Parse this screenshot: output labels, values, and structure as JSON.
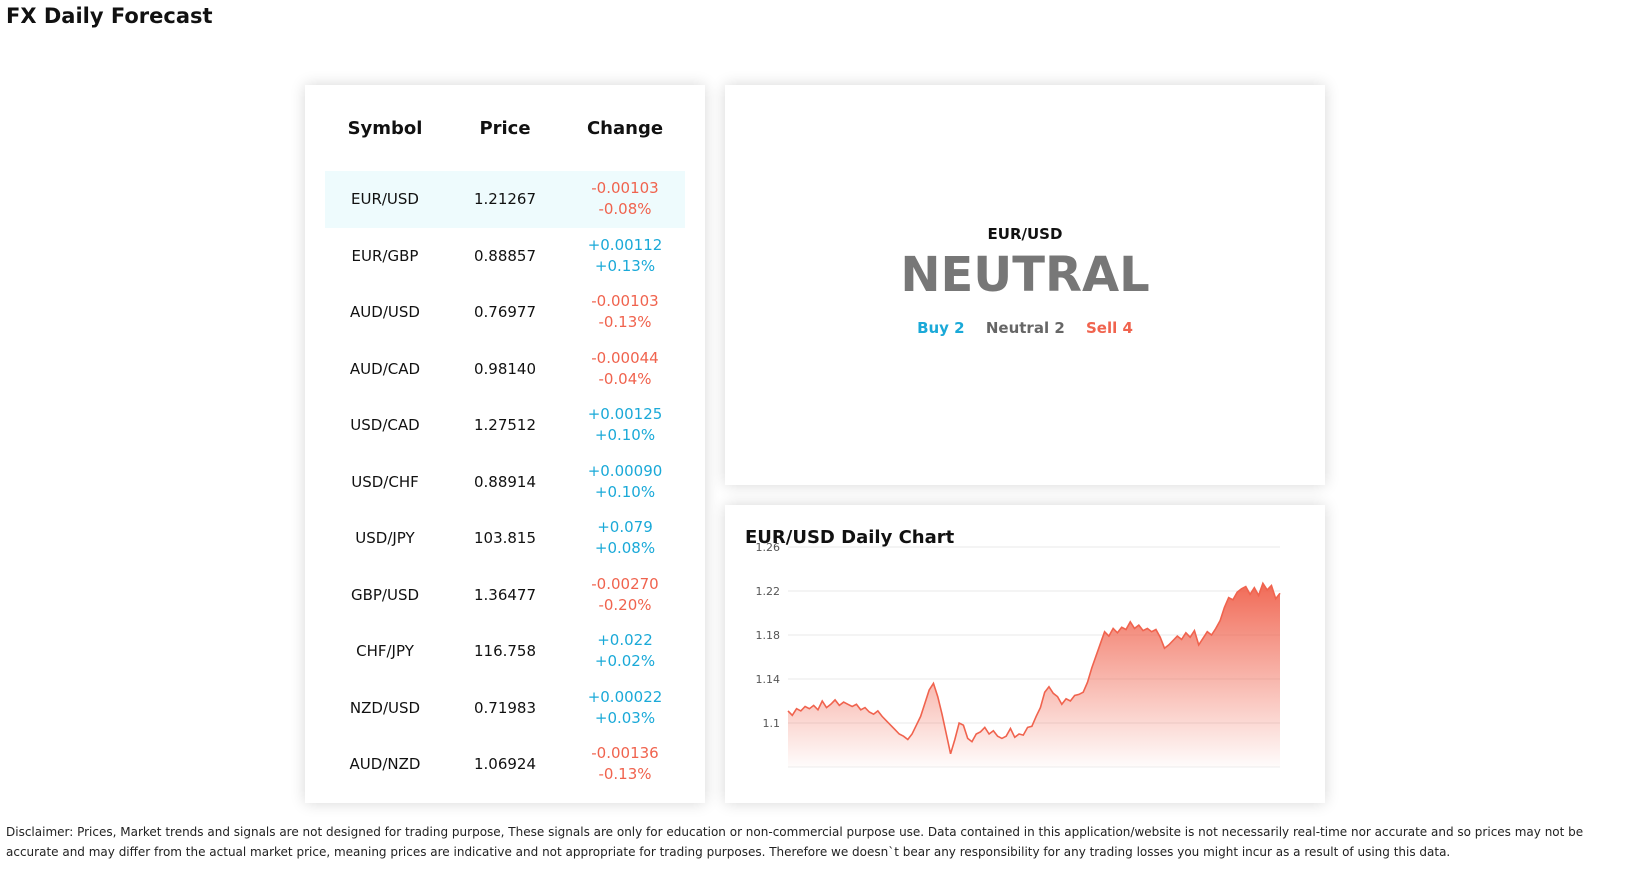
{
  "page": {
    "title": "FX Daily Forecast"
  },
  "table": {
    "headers": {
      "symbol": "Symbol",
      "price": "Price",
      "change": "Change"
    },
    "rows": [
      {
        "symbol": "EUR/USD",
        "price": "1.21267",
        "change": "-0.00103",
        "change_pct": "-0.08%",
        "direction": "down",
        "selected": true
      },
      {
        "symbol": "EUR/GBP",
        "price": "0.88857",
        "change": "+0.00112",
        "change_pct": "+0.13%",
        "direction": "up"
      },
      {
        "symbol": "AUD/USD",
        "price": "0.76977",
        "change": "-0.00103",
        "change_pct": "-0.13%",
        "direction": "down"
      },
      {
        "symbol": "AUD/CAD",
        "price": "0.98140",
        "change": "-0.00044",
        "change_pct": "-0.04%",
        "direction": "down"
      },
      {
        "symbol": "USD/CAD",
        "price": "1.27512",
        "change": "+0.00125",
        "change_pct": "+0.10%",
        "direction": "up"
      },
      {
        "symbol": "USD/CHF",
        "price": "0.88914",
        "change": "+0.00090",
        "change_pct": "+0.10%",
        "direction": "up"
      },
      {
        "symbol": "USD/JPY",
        "price": "103.815",
        "change": "+0.079",
        "change_pct": "+0.08%",
        "direction": "up"
      },
      {
        "symbol": "GBP/USD",
        "price": "1.36477",
        "change": "-0.00270",
        "change_pct": "-0.20%",
        "direction": "down"
      },
      {
        "symbol": "CHF/JPY",
        "price": "116.758",
        "change": "+0.022",
        "change_pct": "+0.02%",
        "direction": "up"
      },
      {
        "symbol": "NZD/USD",
        "price": "0.71983",
        "change": "+0.00022",
        "change_pct": "+0.03%",
        "direction": "up"
      },
      {
        "symbol": "AUD/NZD",
        "price": "1.06924",
        "change": "-0.00136",
        "change_pct": "-0.13%",
        "direction": "down"
      }
    ]
  },
  "signal": {
    "pair": "EUR/USD",
    "value": "NEUTRAL",
    "buy": "Buy 2",
    "neutral": "Neutral 2",
    "sell": "Sell 4"
  },
  "colors": {
    "up": "#1aa9d8",
    "down": "#f0634e",
    "neutral": "#777777",
    "selected_row": "#eefbfd"
  },
  "chart": {
    "title": "EUR/USD Daily Chart"
  },
  "chart_data": {
    "type": "area",
    "title": "EUR/USD Daily Chart",
    "xlabel": "",
    "ylabel": "",
    "ylim": [
      1.06,
      1.26
    ],
    "yticks": [
      "1.26",
      "1.22",
      "1.18",
      "1.14",
      "1.1"
    ],
    "grid": true,
    "series": [
      {
        "values": [
          1.111,
          1.107,
          1.113,
          1.111,
          1.115,
          1.113,
          1.116,
          1.112,
          1.12,
          1.114,
          1.117,
          1.121,
          1.116,
          1.119,
          1.117,
          1.115,
          1.117,
          1.112,
          1.114,
          1.11,
          1.108,
          1.111,
          1.106,
          1.102,
          1.098,
          1.094,
          1.09,
          1.088,
          1.085,
          1.09,
          1.098,
          1.106,
          1.118,
          1.13,
          1.136,
          1.124,
          1.108,
          1.09,
          1.072,
          1.085,
          1.1,
          1.098,
          1.086,
          1.083,
          1.09,
          1.092,
          1.096,
          1.09,
          1.093,
          1.088,
          1.086,
          1.088,
          1.095,
          1.087,
          1.09,
          1.089,
          1.096,
          1.097,
          1.106,
          1.114,
          1.128,
          1.133,
          1.127,
          1.124,
          1.117,
          1.122,
          1.12,
          1.125,
          1.126,
          1.128,
          1.137,
          1.15,
          1.161,
          1.172,
          1.183,
          1.179,
          1.186,
          1.182,
          1.187,
          1.185,
          1.192,
          1.186,
          1.189,
          1.184,
          1.186,
          1.183,
          1.185,
          1.178,
          1.168,
          1.171,
          1.175,
          1.179,
          1.176,
          1.182,
          1.178,
          1.184,
          1.171,
          1.177,
          1.183,
          1.18,
          1.186,
          1.193,
          1.205,
          1.214,
          1.212,
          1.219,
          1.222,
          1.224,
          1.217,
          1.223,
          1.216,
          1.227,
          1.221,
          1.225,
          1.213,
          1.218
        ]
      }
    ]
  },
  "disclaimer": "Disclaimer: Prices, Market trends and signals are not designed for trading purpose, These signals are only for education or non-commercial purpose use. Data contained in this application/website is not necessarily real-time nor accurate and so prices may not be accurate and may differ from the actual market price, meaning prices are indicative and not appropriate for trading purposes. Therefore we doesn`t bear any responsibility for any trading losses you might incur as a result of using this data."
}
